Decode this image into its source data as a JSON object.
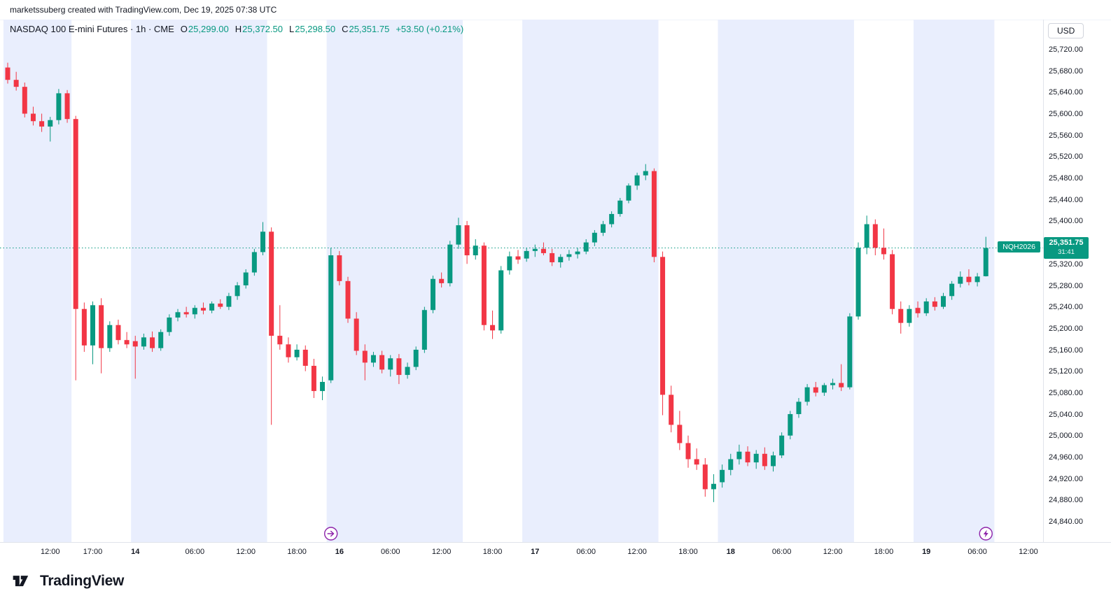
{
  "attribution": "marketssuberg created with TradingView.com, Dec 19, 2025 07:38 UTC",
  "header": {
    "symbol_title": "NASDAQ 100 E-mini Futures · 1h · CME",
    "ohlc": {
      "o_label": "O",
      "o": "25,299.00",
      "h_label": "H",
      "h": "25,372.50",
      "l_label": "L",
      "l": "25,298.50",
      "c_label": "C",
      "c": "25,351.75",
      "change": "+53.50 (+0.21%)"
    }
  },
  "axis": {
    "currency": "USD"
  },
  "price_label": {
    "symbol": "NQH2026",
    "price": "25,351.75",
    "countdown": "31:41"
  },
  "footer": {
    "brand": "TradingView"
  },
  "colors": {
    "up": "#089981",
    "down": "#f23645",
    "session_band": "#e9eefd",
    "text": "#131722",
    "marker": "#8e24aa"
  },
  "chart_data": {
    "type": "candlestick",
    "title": "NASDAQ 100 E-mini Futures · 1h · CME",
    "ylabel": "USD",
    "timezone": "UTC",
    "current_price": 25351.75,
    "price_axis": {
      "min": 24840,
      "max": 25720,
      "step": 40
    },
    "x_ticks": [
      {
        "i": 5,
        "label": "12:00",
        "major": false
      },
      {
        "i": 10,
        "label": "17:00",
        "major": false
      },
      {
        "i": 15,
        "label": "14",
        "major": true
      },
      {
        "i": 22,
        "label": "06:00",
        "major": false
      },
      {
        "i": 28,
        "label": "12:00",
        "major": false
      },
      {
        "i": 34,
        "label": "18:00",
        "major": false
      },
      {
        "i": 39,
        "label": "16",
        "major": true
      },
      {
        "i": 45,
        "label": "06:00",
        "major": false
      },
      {
        "i": 51,
        "label": "12:00",
        "major": false
      },
      {
        "i": 57,
        "label": "18:00",
        "major": false
      },
      {
        "i": 62,
        "label": "17",
        "major": true
      },
      {
        "i": 68,
        "label": "06:00",
        "major": false
      },
      {
        "i": 74,
        "label": "12:00",
        "major": false
      },
      {
        "i": 80,
        "label": "18:00",
        "major": false
      },
      {
        "i": 85,
        "label": "18",
        "major": true
      },
      {
        "i": 91,
        "label": "06:00",
        "major": false
      },
      {
        "i": 97,
        "label": "12:00",
        "major": false
      },
      {
        "i": 103,
        "label": "18:00",
        "major": false
      },
      {
        "i": 108,
        "label": "19",
        "major": true
      },
      {
        "i": 114,
        "label": "06:00",
        "major": false
      },
      {
        "i": 120,
        "label": "12:00",
        "major": false
      }
    ],
    "session_bands": [
      [
        -0.5,
        7.5
      ],
      [
        14.5,
        30.5
      ],
      [
        37.5,
        53.5
      ],
      [
        60.5,
        76.5
      ],
      [
        83.5,
        99.5
      ],
      [
        106.5,
        116
      ]
    ],
    "event_markers": [
      {
        "i": 38,
        "type": "arrow"
      },
      {
        "i": 115,
        "type": "bolt"
      }
    ],
    "candles": [
      [
        25688,
        25697,
        25658,
        25665
      ],
      [
        25665,
        25680,
        25645,
        25652
      ],
      [
        25652,
        25660,
        25595,
        25602
      ],
      [
        25602,
        25615,
        25580,
        25588
      ],
      [
        25588,
        25602,
        25568,
        25578
      ],
      [
        25578,
        25596,
        25550,
        25590
      ],
      [
        25590,
        25648,
        25582,
        25640
      ],
      [
        25640,
        25646,
        25585,
        25592
      ],
      [
        25592,
        25598,
        25105,
        25238
      ],
      [
        25238,
        25250,
        25158,
        25170
      ],
      [
        25170,
        25252,
        25135,
        25245
      ],
      [
        25245,
        25258,
        25118,
        25165
      ],
      [
        25165,
        25215,
        25158,
        25208
      ],
      [
        25208,
        25218,
        25172,
        25180
      ],
      [
        25180,
        25195,
        25165,
        25172
      ],
      [
        25178,
        25188,
        25108,
        25168
      ],
      [
        25168,
        25192,
        25162,
        25185
      ],
      [
        25185,
        25196,
        25158,
        25165
      ],
      [
        25165,
        25200,
        25160,
        25195
      ],
      [
        25195,
        25228,
        25188,
        25222
      ],
      [
        25222,
        25238,
        25215,
        25232
      ],
      [
        25232,
        25242,
        25222,
        25228
      ],
      [
        25228,
        25245,
        25220,
        25240
      ],
      [
        25240,
        25250,
        25228,
        25235
      ],
      [
        25235,
        25252,
        25230,
        25248
      ],
      [
        25248,
        25256,
        25238,
        25242
      ],
      [
        25242,
        25268,
        25236,
        25262
      ],
      [
        25262,
        25288,
        25255,
        25282
      ],
      [
        25282,
        25312,
        25276,
        25306
      ],
      [
        25306,
        25350,
        25300,
        25344
      ],
      [
        25344,
        25400,
        25338,
        25382
      ],
      [
        25382,
        25390,
        25022,
        25188
      ],
      [
        25188,
        25245,
        25162,
        25172
      ],
      [
        25172,
        25185,
        25138,
        25148
      ],
      [
        25148,
        25172,
        25142,
        25162
      ],
      [
        25162,
        25170,
        25122,
        25132
      ],
      [
        25132,
        25145,
        25072,
        25085
      ],
      [
        25085,
        25112,
        25068,
        25102
      ],
      [
        25105,
        25352,
        25100,
        25338
      ],
      [
        25338,
        25346,
        25282,
        25290
      ],
      [
        25290,
        25298,
        25212,
        25220
      ],
      [
        25220,
        25232,
        25152,
        25160
      ],
      [
        25160,
        25172,
        25105,
        25138
      ],
      [
        25138,
        25158,
        25130,
        25152
      ],
      [
        25152,
        25160,
        25118,
        25125
      ],
      [
        25125,
        25152,
        25112,
        25146
      ],
      [
        25146,
        25154,
        25098,
        25115
      ],
      [
        25115,
        25138,
        25108,
        25130
      ],
      [
        25130,
        25168,
        25124,
        25162
      ],
      [
        25162,
        25242,
        25156,
        25236
      ],
      [
        25236,
        25300,
        25230,
        25294
      ],
      [
        25294,
        25306,
        25278,
        25286
      ],
      [
        25286,
        25365,
        25280,
        25358
      ],
      [
        25358,
        25408,
        25350,
        25394
      ],
      [
        25394,
        25402,
        25322,
        25338
      ],
      [
        25338,
        25368,
        25330,
        25356
      ],
      [
        25356,
        25362,
        25198,
        25208
      ],
      [
        25208,
        25235,
        25182,
        25198
      ],
      [
        25198,
        25318,
        25192,
        25310
      ],
      [
        25310,
        25345,
        25302,
        25336
      ],
      [
        25336,
        25348,
        25322,
        25330
      ],
      [
        25332,
        25352,
        25326,
        25346
      ],
      [
        25346,
        25358,
        25335,
        25350
      ],
      [
        25350,
        25362,
        25338,
        25342
      ],
      [
        25342,
        25350,
        25318,
        25325
      ],
      [
        25325,
        25340,
        25315,
        25335
      ],
      [
        25335,
        25348,
        25328,
        25340
      ],
      [
        25340,
        25352,
        25332,
        25345
      ],
      [
        25345,
        25368,
        25340,
        25362
      ],
      [
        25362,
        25385,
        25355,
        25380
      ],
      [
        25380,
        25402,
        25374,
        25396
      ],
      [
        25396,
        25420,
        25390,
        25415
      ],
      [
        25415,
        25445,
        25410,
        25440
      ],
      [
        25440,
        25472,
        25435,
        25468
      ],
      [
        25468,
        25492,
        25460,
        25487
      ],
      [
        25487,
        25508,
        25478,
        25495
      ],
      [
        25495,
        25500,
        25325,
        25335
      ],
      [
        25335,
        25345,
        25040,
        25078
      ],
      [
        25078,
        25095,
        25008,
        25022
      ],
      [
        25022,
        25048,
        24975,
        24988
      ],
      [
        24988,
        25002,
        24942,
        24958
      ],
      [
        24958,
        24978,
        24938,
        24948
      ],
      [
        24948,
        24960,
        24888,
        24902
      ],
      [
        24902,
        24930,
        24878,
        24912
      ],
      [
        24915,
        24948,
        24905,
        24938
      ],
      [
        24938,
        24968,
        24928,
        24958
      ],
      [
        24958,
        24985,
        24948,
        24972
      ],
      [
        24972,
        24982,
        24945,
        24952
      ],
      [
        24952,
        24975,
        24940,
        24968
      ],
      [
        24968,
        24980,
        24938,
        24945
      ],
      [
        24945,
        24972,
        24935,
        24965
      ],
      [
        24965,
        25008,
        24960,
        25002
      ],
      [
        25002,
        25048,
        24995,
        25042
      ],
      [
        25042,
        25072,
        25035,
        25065
      ],
      [
        25065,
        25098,
        25058,
        25092
      ],
      [
        25092,
        25102,
        25075,
        25082
      ],
      [
        25082,
        25100,
        25076,
        25096
      ],
      [
        25096,
        25108,
        25088,
        25100
      ],
      [
        25100,
        25135,
        25085,
        25092
      ],
      [
        25092,
        25230,
        25088,
        25224
      ],
      [
        25224,
        25362,
        25218,
        25352
      ],
      [
        25352,
        25412,
        25340,
        25396
      ],
      [
        25396,
        25405,
        25338,
        25352
      ],
      [
        25352,
        25388,
        25330,
        25340
      ],
      [
        25340,
        25348,
        25228,
        25238
      ],
      [
        25238,
        25252,
        25192,
        25212
      ],
      [
        25212,
        25245,
        25205,
        25238
      ],
      [
        25240,
        25252,
        25222,
        25230
      ],
      [
        25230,
        25258,
        25225,
        25252
      ],
      [
        25252,
        25260,
        25235,
        25242
      ],
      [
        25242,
        25268,
        25238,
        25262
      ],
      [
        25262,
        25290,
        25255,
        25285
      ],
      [
        25285,
        25308,
        25278,
        25298
      ],
      [
        25298,
        25312,
        25282,
        25288
      ],
      [
        25288,
        25305,
        25280,
        25298.5
      ],
      [
        25299,
        25372.5,
        25298.5,
        25351.75
      ]
    ]
  }
}
